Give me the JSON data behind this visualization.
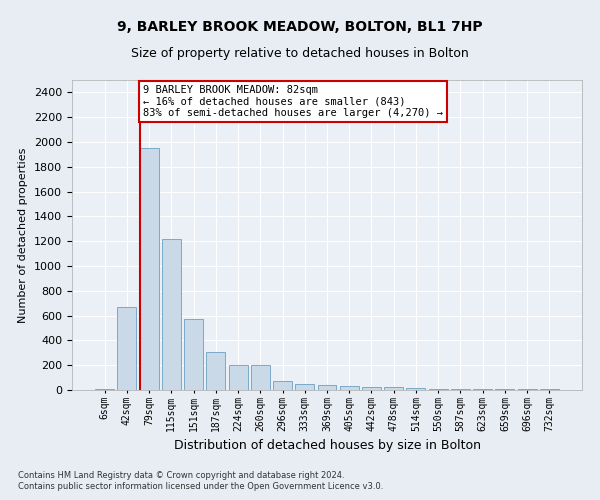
{
  "title": "9, BARLEY BROOK MEADOW, BOLTON, BL1 7HP",
  "subtitle": "Size of property relative to detached houses in Bolton",
  "xlabel": "Distribution of detached houses by size in Bolton",
  "ylabel": "Number of detached properties",
  "categories": [
    "6sqm",
    "42sqm",
    "79sqm",
    "115sqm",
    "151sqm",
    "187sqm",
    "224sqm",
    "260sqm",
    "296sqm",
    "333sqm",
    "369sqm",
    "405sqm",
    "442sqm",
    "478sqm",
    "514sqm",
    "550sqm",
    "587sqm",
    "623sqm",
    "659sqm",
    "696sqm",
    "732sqm"
  ],
  "values": [
    10,
    670,
    1950,
    1220,
    575,
    305,
    200,
    200,
    75,
    45,
    40,
    30,
    25,
    25,
    20,
    10,
    10,
    8,
    5,
    5,
    5
  ],
  "bar_color": "#c9d9e8",
  "bar_edge_color": "#7aaac8",
  "vline_index": 2,
  "vline_color": "#cc0000",
  "ylim": [
    0,
    2500
  ],
  "yticks": [
    0,
    200,
    400,
    600,
    800,
    1000,
    1200,
    1400,
    1600,
    1800,
    2000,
    2200,
    2400
  ],
  "annotation_text": "9 BARLEY BROOK MEADOW: 82sqm\n← 16% of detached houses are smaller (843)\n83% of semi-detached houses are larger (4,270) →",
  "annotation_box_facecolor": "#ffffff",
  "annotation_box_edgecolor": "#cc0000",
  "footer_line1": "Contains HM Land Registry data © Crown copyright and database right 2024.",
  "footer_line2": "Contains public sector information licensed under the Open Government Licence v3.0.",
  "bg_color": "#e8edf4",
  "plot_bg_color": "#eaf0f6",
  "title_fontsize": 10,
  "subtitle_fontsize": 9,
  "ylabel_fontsize": 8,
  "xlabel_fontsize": 9
}
